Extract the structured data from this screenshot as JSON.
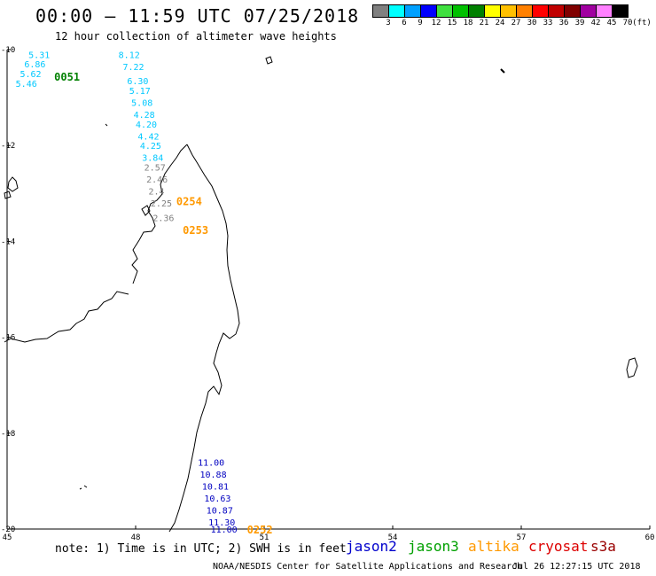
{
  "title": "00:00 – 11:59 UTC 07/25/2018",
  "subtitle": "12 hour collection of altimeter wave heights",
  "color_scale": {
    "unit": "(ft)",
    "swatches": [
      {
        "label": "3",
        "color": "#808080"
      },
      {
        "label": "6",
        "color": "#00ffff"
      },
      {
        "label": "9",
        "color": "#00a0ff"
      },
      {
        "label": "12",
        "color": "#0000ff"
      },
      {
        "label": "15",
        "color": "#40e040"
      },
      {
        "label": "18",
        "color": "#00c000"
      },
      {
        "label": "21",
        "color": "#008000"
      },
      {
        "label": "24",
        "color": "#ffff00"
      },
      {
        "label": "27",
        "color": "#ffc000"
      },
      {
        "label": "30",
        "color": "#ff8000"
      },
      {
        "label": "33",
        "color": "#ff0000"
      },
      {
        "label": "36",
        "color": "#c00000"
      },
      {
        "label": "39",
        "color": "#800000"
      },
      {
        "label": "42",
        "color": "#a000a0"
      },
      {
        "label": "45",
        "color": "#ff80ff"
      },
      {
        "label": "70",
        "color": "#000000"
      }
    ]
  },
  "axes": {
    "lon_ticks": [
      "45",
      "48",
      "51",
      "54",
      "57",
      "60"
    ],
    "lat_ticks": [
      "-10",
      "-12",
      "-14",
      "-16",
      "-18",
      "-20"
    ],
    "lon_range": [
      45,
      60
    ],
    "lat_range": [
      -20,
      -10
    ]
  },
  "tracks": [
    {
      "satellite": "jason3",
      "time": "0051",
      "time_color": "#008000",
      "time_pos": [
        46.1,
        -10.55
      ],
      "points": [
        {
          "lon": 45.5,
          "lat": -10.1,
          "value": "5.31",
          "color": "#00c8ff"
        },
        {
          "lon": 45.4,
          "lat": -10.3,
          "value": "6.86",
          "color": "#00c8ff"
        },
        {
          "lon": 45.3,
          "lat": -10.5,
          "value": "5.62",
          "color": "#00c8ff"
        },
        {
          "lon": 45.2,
          "lat": -10.7,
          "value": "5.46",
          "color": "#00c8ff"
        }
      ]
    },
    {
      "satellite": "altika",
      "time": "0254",
      "time_color": "#ff9900",
      "time_pos": [
        48.95,
        -13.15
      ],
      "points": [
        {
          "lon": 47.6,
          "lat": -10.1,
          "value": "8.12",
          "color": "#00c8ff"
        },
        {
          "lon": 47.7,
          "lat": -10.35,
          "value": "7.22",
          "color": "#00c8ff"
        },
        {
          "lon": 47.8,
          "lat": -10.65,
          "value": "6.30",
          "color": "#00c8ff"
        },
        {
          "lon": 47.85,
          "lat": -10.85,
          "value": "5.17",
          "color": "#00c8ff"
        },
        {
          "lon": 47.9,
          "lat": -11.1,
          "value": "5.08",
          "color": "#00c8ff"
        },
        {
          "lon": 47.95,
          "lat": -11.35,
          "value": "4.28",
          "color": "#00c8ff"
        },
        {
          "lon": 48.0,
          "lat": -11.55,
          "value": "4.20",
          "color": "#00c8ff"
        },
        {
          "lon": 48.05,
          "lat": -11.8,
          "value": "4.42",
          "color": "#00c8ff"
        },
        {
          "lon": 48.1,
          "lat": -12.0,
          "value": "4.25",
          "color": "#00c8ff"
        },
        {
          "lon": 48.15,
          "lat": -12.25,
          "value": "3.84",
          "color": "#00c8ff"
        }
      ]
    },
    {
      "satellite": "altika",
      "time": "0253",
      "time_color": "#ff9900",
      "time_pos": [
        49.1,
        -13.75
      ],
      "points": [
        {
          "lon": 48.2,
          "lat": -12.45,
          "value": "2.57",
          "color": "#808080"
        },
        {
          "lon": 48.25,
          "lat": -12.7,
          "value": "2.46",
          "color": "#808080"
        },
        {
          "lon": 48.3,
          "lat": -12.95,
          "value": "2.4",
          "color": "#808080"
        },
        {
          "lon": 48.35,
          "lat": -13.2,
          "value": "2.25",
          "color": "#808080"
        },
        {
          "lon": 48.4,
          "lat": -13.5,
          "value": "2.36",
          "color": "#808080"
        }
      ]
    },
    {
      "satellite": "jason2",
      "time": "0252",
      "time_color": "#ff9900",
      "time_pos": [
        50.6,
        -20.0
      ],
      "points": [
        {
          "lon": 49.45,
          "lat": -18.6,
          "value": "11.00",
          "color": "#0000c0"
        },
        {
          "lon": 49.5,
          "lat": -18.85,
          "value": "10.88",
          "color": "#0000c0"
        },
        {
          "lon": 49.55,
          "lat": -19.1,
          "value": "10.81",
          "color": "#0000c0"
        },
        {
          "lon": 49.6,
          "lat": -19.35,
          "value": "10.63",
          "color": "#0000c0"
        },
        {
          "lon": 49.65,
          "lat": -19.6,
          "value": "10.87",
          "color": "#0000c0"
        },
        {
          "lon": 49.7,
          "lat": -19.85,
          "value": "11.30",
          "color": "#0000c0"
        },
        {
          "lon": 49.75,
          "lat": -20.0,
          "value": "11.00",
          "color": "#0000c0"
        }
      ]
    }
  ],
  "note": "note: 1) Time is in UTC; 2) SWH is in feet",
  "legend": [
    {
      "label": "jason2",
      "color": "#0000cc"
    },
    {
      "label": "jason3",
      "color": "#00a000"
    },
    {
      "label": "altika",
      "color": "#ff9900"
    },
    {
      "label": "cryosat",
      "color": "#dd0000"
    },
    {
      "label": "s3a",
      "color": "#990000"
    }
  ],
  "credit": "NOAA/NESDIS Center for Satellite Applications and Research",
  "timestamp": "Jul 26 12:27:15 UTC 2018"
}
